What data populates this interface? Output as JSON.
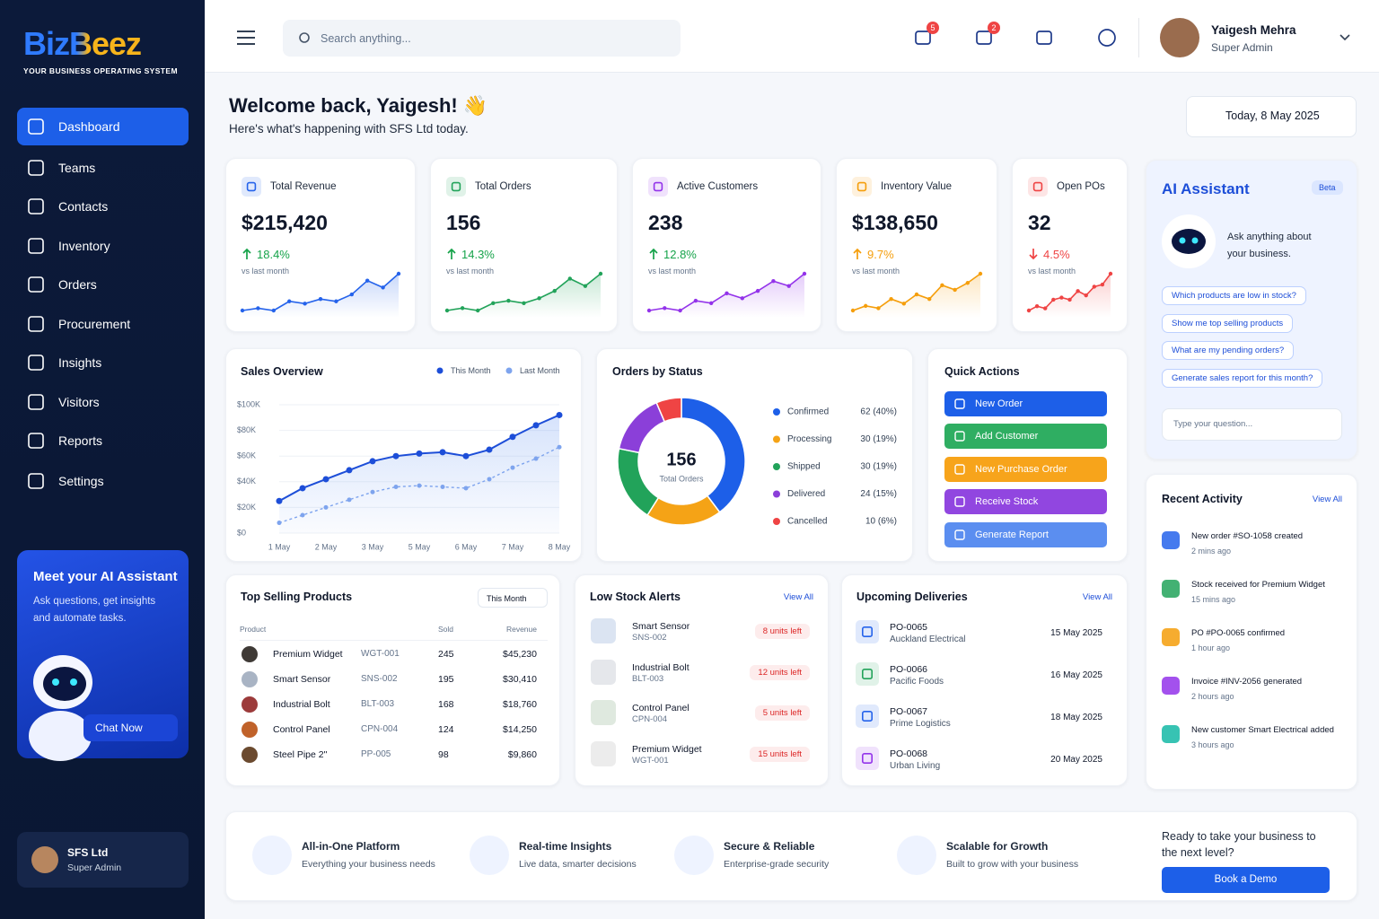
{
  "brand": {
    "name": "BizBeez",
    "tagline": "YOUR BUSINESS OPERATING SYSTEM"
  },
  "nav": [
    "Dashboard",
    "Teams",
    "Contacts",
    "Inventory",
    "Orders",
    "Procurement",
    "Insights",
    "Visitors",
    "Reports",
    "Settings"
  ],
  "promo": {
    "title": "Meet your AI Assistant",
    "text": "Ask questions, get insights and automate tasks.",
    "button": "Chat Now"
  },
  "org": {
    "name": "SFS Ltd",
    "role": "Super Admin"
  },
  "header": {
    "search": "Search anything...",
    "badges": [
      5,
      2
    ],
    "user": {
      "name": "Yaigesh Mehra",
      "role": "Super Admin"
    }
  },
  "welcome": {
    "title": "Welcome back, Yaigesh! 👋",
    "subtitle": "Here's what's happening with SFS Ltd today.",
    "date": "Today, 8 May 2025"
  },
  "kpis": [
    {
      "label": "Total Revenue",
      "value": "$215,420",
      "change": "18.4%",
      "trend": "up",
      "change_color": "#16a34a",
      "color": "#2563eb",
      "note": "vs last month",
      "spark": [
        3,
        4,
        3,
        7,
        6,
        8,
        7,
        10,
        16,
        13,
        19
      ]
    },
    {
      "label": "Total Orders",
      "value": "156",
      "change": "14.3%",
      "trend": "up",
      "change_color": "#16a34a",
      "color": "#22a35a",
      "note": "vs last month",
      "spark": [
        3,
        4,
        3,
        6,
        7,
        6,
        8,
        11,
        16,
        13,
        18
      ]
    },
    {
      "label": "Active Customers",
      "value": "238",
      "change": "12.8%",
      "trend": "up",
      "change_color": "#16a34a",
      "color": "#9333ea",
      "note": "vs last month",
      "spark": [
        4,
        5,
        4,
        8,
        7,
        11,
        9,
        12,
        16,
        14,
        19
      ]
    },
    {
      "label": "Inventory Value",
      "value": "$138,650",
      "change": "9.7%",
      "trend": "up",
      "change_color": "#f59e0b",
      "color": "#f59e0b",
      "note": "vs last month",
      "spark": [
        3,
        5,
        4,
        8,
        6,
        10,
        8,
        14,
        12,
        15,
        19
      ]
    },
    {
      "label": "Open POs",
      "value": "32",
      "change": "4.5%",
      "trend": "down",
      "change_color": "#ef4444",
      "color": "#ef4444",
      "note": "vs last month",
      "spark": [
        3,
        5,
        4,
        8,
        9,
        8,
        12,
        10,
        14,
        15,
        20
      ]
    }
  ],
  "sales": {
    "title": "Sales Overview",
    "categories": [
      "1 May",
      null,
      "2 May",
      null,
      "3 May",
      null,
      "5 May",
      null,
      "6 May",
      null,
      "7 May",
      null,
      "8 May"
    ],
    "series": [
      {
        "name": "This Month",
        "color": "#1d4ed8",
        "values": [
          25000,
          35000,
          42000,
          49000,
          56000,
          60000,
          62000,
          63000,
          60000,
          65000,
          75000,
          84000,
          92000
        ]
      },
      {
        "name": "Last Month",
        "color": "#7ea4ee",
        "values": [
          8000,
          14000,
          20000,
          26000,
          32000,
          36000,
          37000,
          36000,
          35000,
          42000,
          51000,
          58000,
          67000
        ]
      }
    ],
    "ylim": [
      0,
      100000
    ],
    "yticks": [
      {
        "value": 0,
        "label": "$0"
      },
      {
        "value": 20000,
        "label": "$20K"
      },
      {
        "value": 40000,
        "label": "$40K"
      },
      {
        "value": 60000,
        "label": "$60K"
      },
      {
        "value": 80000,
        "label": "$80K"
      },
      {
        "value": 100000,
        "label": "$100K"
      }
    ]
  },
  "orders": {
    "title": "Orders by Status",
    "total": 156,
    "total_label": "Total Orders",
    "type": "pie",
    "categories": [
      "Confirmed",
      "Processing",
      "Shipped",
      "Delivered",
      "Cancelled"
    ],
    "values": [
      62,
      30,
      30,
      24,
      10
    ],
    "value_labels": [
      "62 (40%)",
      "30 (19%)",
      "30 (19%)",
      "24 (15%)",
      "10 (6%)"
    ],
    "colors": [
      "#1d5fe8",
      "#f5a316",
      "#22a35a",
      "#8b3fd9",
      "#ef4444"
    ]
  },
  "quick": {
    "title": "Quick Actions",
    "actions": [
      {
        "label": "New Order",
        "color": "#1d5fe8"
      },
      {
        "label": "Add Customer",
        "color": "#2fae62"
      },
      {
        "label": "New Purchase Order",
        "color": "#f7a41b"
      },
      {
        "label": "Receive Stock",
        "color": "#9146e0"
      },
      {
        "label": "Generate Report",
        "color": "#5b8ef0"
      }
    ]
  },
  "assistant": {
    "title": "AI Assistant",
    "badge": "Beta",
    "intro": "Ask anything about your business.",
    "suggestions": [
      "Which products are low in stock?",
      "Show me top selling products",
      "What are my pending orders?",
      "Generate sales report for this month?"
    ],
    "placeholder": "Type your question..."
  },
  "top": {
    "title": "Top Selling Products",
    "filter": "This Month",
    "columns": [
      "Product",
      "Sold",
      "Revenue"
    ],
    "rows": [
      {
        "name": "Premium Widget",
        "sku": "WGT-001",
        "sold": 245,
        "revenue": "$45,230"
      },
      {
        "name": "Smart Sensor",
        "sku": "SNS-002",
        "sold": 195,
        "revenue": "$30,410"
      },
      {
        "name": "Industrial Bolt",
        "sku": "BLT-003",
        "sold": 168,
        "revenue": "$18,760"
      },
      {
        "name": "Control Panel",
        "sku": "CPN-004",
        "sold": 124,
        "revenue": "$14,250"
      },
      {
        "name": "Steel Pipe 2\"",
        "sku": "PP-005",
        "sold": 98,
        "revenue": "$9,860"
      }
    ]
  },
  "low": {
    "title": "Low Stock Alerts",
    "link": "View All",
    "items": [
      {
        "name": "Smart Sensor",
        "sku": "SNS-002",
        "stock": "8 units left"
      },
      {
        "name": "Industrial Bolt",
        "sku": "BLT-003",
        "stock": "12 units left"
      },
      {
        "name": "Control Panel",
        "sku": "CPN-004",
        "stock": "5 units left"
      },
      {
        "name": "Premium Widget",
        "sku": "WGT-001",
        "stock": "15 units left"
      }
    ]
  },
  "deliveries": {
    "title": "Upcoming Deliveries",
    "link": "View All",
    "items": [
      {
        "po": "PO-0065",
        "company": "Auckland Electrical",
        "date": "15 May 2025"
      },
      {
        "po": "PO-0066",
        "company": "Pacific Foods",
        "date": "16 May 2025"
      },
      {
        "po": "PO-0067",
        "company": "Prime Logistics",
        "date": "18 May 2025"
      },
      {
        "po": "PO-0068",
        "company": "Urban Living",
        "date": "20 May 2025"
      }
    ]
  },
  "activity": {
    "title": "Recent Activity",
    "link": "View All",
    "items": [
      {
        "text": "New order #SO-1058 created",
        "time": "2 mins ago",
        "color": "#2563eb"
      },
      {
        "text": "Stock received for Premium Widget",
        "time": "15 mins ago",
        "color": "#22a35a"
      },
      {
        "text": "PO #PO-0065 confirmed",
        "time": "1 hour ago",
        "color": "#f59e0b"
      },
      {
        "text": "Invoice #INV-2056 generated",
        "time": "2 hours ago",
        "color": "#9333ea"
      },
      {
        "text": "New customer Smart Electrical added",
        "time": "3 hours ago",
        "color": "#14b8a6"
      }
    ]
  },
  "features": [
    {
      "title": "All-in-One Platform",
      "text": "Everything your business needs"
    },
    {
      "title": "Real-time Insights",
      "text": "Live data, smarter decisions"
    },
    {
      "title": "Secure & Reliable",
      "text": "Enterprise-grade security"
    },
    {
      "title": "Scalable for Growth",
      "text": "Built to grow with your business"
    }
  ],
  "cta": {
    "text": "Ready to take your business to the next level?",
    "button": "Book a Demo"
  }
}
